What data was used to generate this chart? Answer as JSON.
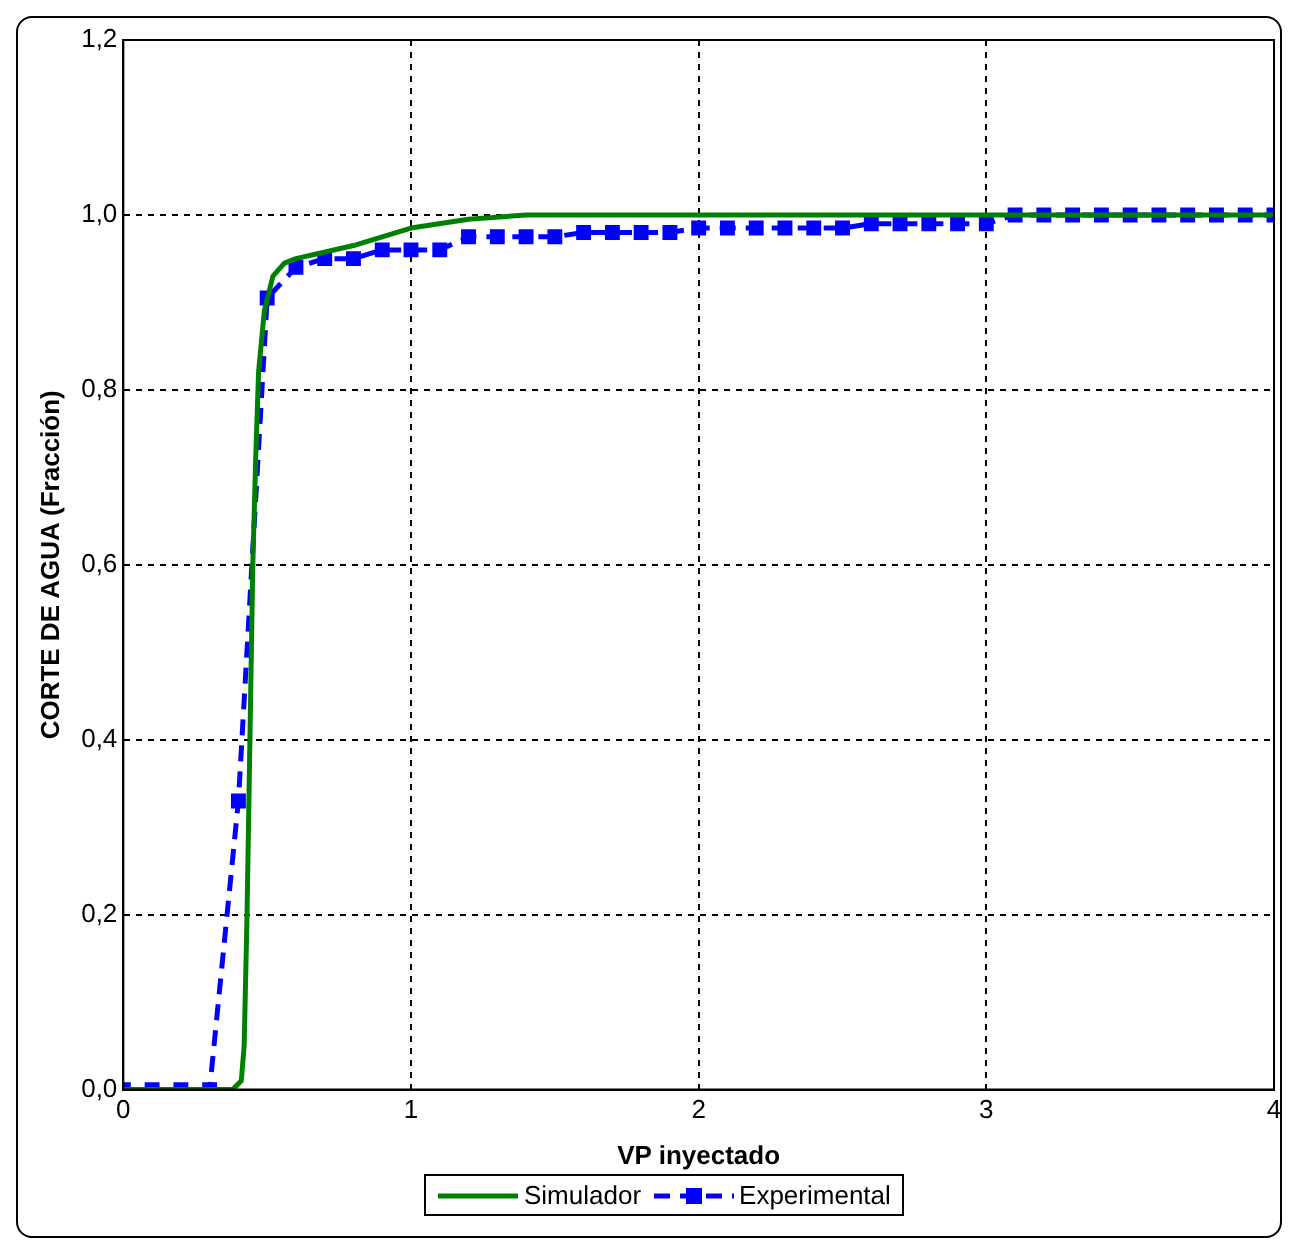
{
  "chart_data": {
    "type": "line",
    "xlabel": "VP inyectado",
    "ylabel": "CORTE DE AGUA (Fracción)",
    "xlim": [
      0,
      4
    ],
    "xticks": [
      0,
      1,
      2,
      3,
      4
    ],
    "ylim": [
      0,
      1.2
    ],
    "yticks": [
      {
        "value": 0,
        "label": "0,0"
      },
      {
        "value": 0.2,
        "label": "0,2"
      },
      {
        "value": 0.4,
        "label": "0,4"
      },
      {
        "value": 0.6,
        "label": "0,6"
      },
      {
        "value": 0.8,
        "label": "0,8"
      },
      {
        "value": 1,
        "label": "1,0"
      },
      {
        "value": 1.2,
        "label": "1,2"
      }
    ],
    "grid": true,
    "legend": "bottom",
    "series": [
      {
        "name": "Simulador",
        "color": "#008000",
        "marker": "none",
        "line_style": "solid",
        "x": [
          0,
          0.38,
          0.41,
          0.42,
          0.43,
          0.44,
          0.45,
          0.46,
          0.47,
          0.49,
          0.52,
          0.56,
          0.6,
          0.8,
          1.0,
          1.2,
          1.4,
          2.0,
          3.0,
          4.0
        ],
        "values": [
          0,
          0,
          0.01,
          0.05,
          0.2,
          0.4,
          0.6,
          0.72,
          0.82,
          0.89,
          0.93,
          0.945,
          0.95,
          0.965,
          0.985,
          0.995,
          1.0,
          1.0,
          1.0,
          1.0
        ]
      },
      {
        "name": "Experimental",
        "color": "#0000ff",
        "marker": "square",
        "line_style": "dashed",
        "x": [
          0,
          0.1,
          0.2,
          0.3,
          0.4,
          0.5,
          0.6,
          0.7,
          0.8,
          0.9,
          1.0,
          1.1,
          1.2,
          1.3,
          1.4,
          1.5,
          1.6,
          1.7,
          1.8,
          1.9,
          2.0,
          2.1,
          2.2,
          2.3,
          2.4,
          2.5,
          2.6,
          2.7,
          2.8,
          2.9,
          3.0,
          3.1,
          3.2,
          3.3,
          3.4,
          3.5,
          3.6,
          3.7,
          3.8,
          3.9,
          4.0
        ],
        "values": [
          0,
          0,
          0,
          0,
          0.33,
          0.905,
          0.94,
          0.95,
          0.95,
          0.96,
          0.96,
          0.96,
          0.975,
          0.975,
          0.975,
          0.975,
          0.98,
          0.98,
          0.98,
          0.98,
          0.985,
          0.985,
          0.985,
          0.985,
          0.985,
          0.985,
          0.99,
          0.99,
          0.99,
          0.99,
          0.99,
          1.0,
          1.0,
          1.0,
          1.0,
          1.0,
          1.0,
          1.0,
          1.0,
          1.0,
          1.0
        ]
      }
    ]
  }
}
